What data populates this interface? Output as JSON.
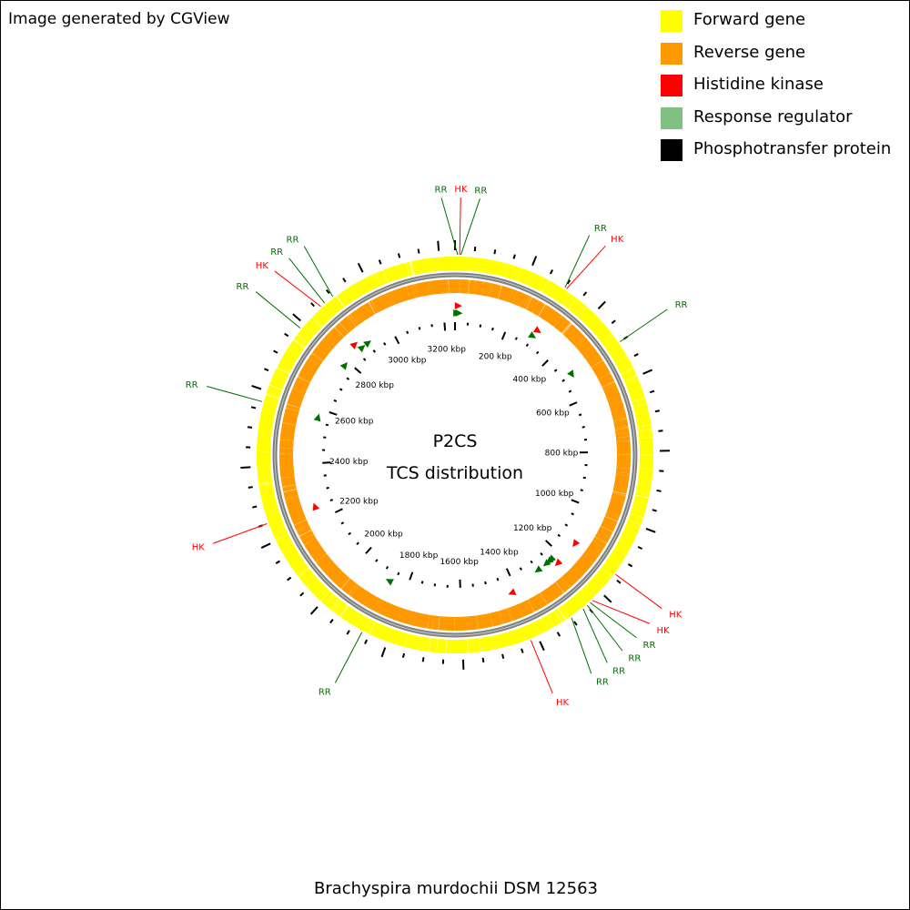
{
  "credit": "Image generated by CGView",
  "caption": "Brachyspira murdochii DSM 12563",
  "center_title": [
    "P2CS",
    "TCS distribution"
  ],
  "genome_length_kbp": 3241,
  "legend": [
    {
      "label": "Forward gene",
      "color": "#ffff00"
    },
    {
      "label": "Reverse gene",
      "color": "#ff9900"
    },
    {
      "label": "Histidine kinase",
      "color": "#ff0000"
    },
    {
      "label": "Response regulator",
      "color": "#80c080"
    },
    {
      "label": "Phosphotransfer protein",
      "color": "#000000"
    }
  ],
  "colors": {
    "forward": "#ffff00",
    "reverse": "#ff9900",
    "hk": "#ff0000",
    "rr": "#007000",
    "backbone": "#808080"
  },
  "tick_labels": [
    {
      "kbp": 200,
      "label": "200 kbp"
    },
    {
      "kbp": 400,
      "label": "400 kbp"
    },
    {
      "kbp": 600,
      "label": "600 kbp"
    },
    {
      "kbp": 800,
      "label": "800 kbp"
    },
    {
      "kbp": 1000,
      "label": "1000 kbp"
    },
    {
      "kbp": 1200,
      "label": "1200 kbp"
    },
    {
      "kbp": 1400,
      "label": "1400 kbp"
    },
    {
      "kbp": 1600,
      "label": "1600 kbp"
    },
    {
      "kbp": 1800,
      "label": "1800 kbp"
    },
    {
      "kbp": 2000,
      "label": "2000 kbp"
    },
    {
      "kbp": 2200,
      "label": "2200 kbp"
    },
    {
      "kbp": 2400,
      "label": "2400 kbp"
    },
    {
      "kbp": 2600,
      "label": "2600 kbp"
    },
    {
      "kbp": 2800,
      "label": "2800 kbp"
    },
    {
      "kbp": 3000,
      "label": "3000 kbp"
    },
    {
      "kbp": 3200,
      "label": "3200 kbp"
    }
  ],
  "tcs_features": [
    {
      "type": "RR",
      "kbp": 7
    },
    {
      "type": "HK",
      "kbp": 12
    },
    {
      "type": "RR",
      "kbp": 15
    },
    {
      "type": "RR",
      "kbp": 300
    },
    {
      "type": "HK",
      "kbp": 305
    },
    {
      "type": "RR",
      "kbp": 500
    },
    {
      "type": "HK",
      "kbp": 1140
    },
    {
      "type": "HK",
      "kbp": 1230
    },
    {
      "type": "RR",
      "kbp": 1238
    },
    {
      "type": "RR",
      "kbp": 1248
    },
    {
      "type": "RR",
      "kbp": 1262
    },
    {
      "type": "RR",
      "kbp": 1300
    },
    {
      "type": "HK",
      "kbp": 1420
    },
    {
      "type": "RR",
      "kbp": 1870
    },
    {
      "type": "HK",
      "kbp": 2250
    },
    {
      "type": "RR",
      "kbp": 2570
    },
    {
      "type": "RR",
      "kbp": 2785
    },
    {
      "type": "HK",
      "kbp": 2862
    },
    {
      "type": "RR",
      "kbp": 2875
    },
    {
      "type": "RR",
      "kbp": 2902
    }
  ]
}
